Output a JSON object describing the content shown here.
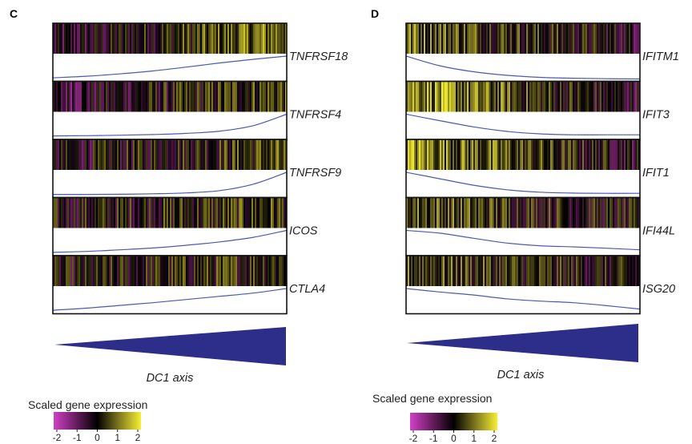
{
  "chart_data": [
    {
      "type": "heatmap",
      "panel": "C",
      "xlabel": "DC1 axis",
      "legend_title": "Scaled gene expression",
      "colorbar_ticks": [
        -2,
        -1,
        0,
        1,
        2
      ],
      "colormap": [
        "#d040c8",
        "#6a1e60",
        "#000000",
        "#807820",
        "#f4f030"
      ],
      "genes": [
        {
          "name": "TNFRSF18",
          "heat_start": -0.6,
          "heat_end": 1.0,
          "trend": [
            0.05,
            0.12,
            0.22,
            0.35,
            0.52,
            0.7,
            0.86,
            1.0
          ]
        },
        {
          "name": "TNFRSF4",
          "heat_start": -0.6,
          "heat_end": 0.6,
          "trend": [
            0.05,
            0.06,
            0.08,
            0.11,
            0.16,
            0.26,
            0.5,
            1.0
          ]
        },
        {
          "name": "TNFRSF9",
          "heat_start": -0.3,
          "heat_end": 0.5,
          "trend": [
            0.03,
            0.03,
            0.04,
            0.06,
            0.1,
            0.2,
            0.48,
            1.0
          ]
        },
        {
          "name": "ICOS",
          "heat_start": -0.1,
          "heat_end": 0.4,
          "trend": [
            0.04,
            0.08,
            0.15,
            0.23,
            0.35,
            0.5,
            0.7,
            1.0
          ]
        },
        {
          "name": "CTLA4",
          "heat_start": -0.2,
          "heat_end": 0.4,
          "trend": [
            0.05,
            0.14,
            0.26,
            0.38,
            0.52,
            0.66,
            0.8,
            1.0
          ]
        }
      ]
    },
    {
      "type": "heatmap",
      "panel": "D",
      "xlabel": "DC1 axis",
      "legend_title": "Scaled gene expression",
      "colorbar_ticks": [
        -2,
        -1,
        0,
        1,
        2
      ],
      "colormap": [
        "#d040c8",
        "#6a1e60",
        "#000000",
        "#807820",
        "#f4f030"
      ],
      "genes": [
        {
          "name": "IFITM1",
          "heat_start": 0.9,
          "heat_end": -0.3,
          "trend": [
            1.0,
            0.58,
            0.32,
            0.16,
            0.07,
            0.03,
            0.01,
            0.0
          ]
        },
        {
          "name": "IFIT3",
          "heat_start": 1.3,
          "heat_end": -0.4,
          "trend": [
            1.0,
            0.72,
            0.45,
            0.25,
            0.14,
            0.1,
            0.1,
            0.1
          ]
        },
        {
          "name": "IFIT1",
          "heat_start": 1.2,
          "heat_end": -0.3,
          "trend": [
            1.0,
            0.72,
            0.44,
            0.24,
            0.13,
            0.09,
            0.08,
            0.08
          ]
        },
        {
          "name": "IFI44L",
          "heat_start": 0.7,
          "heat_end": -0.2,
          "trend": [
            1.0,
            0.88,
            0.66,
            0.45,
            0.33,
            0.28,
            0.22,
            0.15
          ]
        },
        {
          "name": "ISG20",
          "heat_start": 0.6,
          "heat_end": -0.2,
          "trend": [
            1.0,
            0.85,
            0.72,
            0.55,
            0.45,
            0.38,
            0.25,
            0.1
          ]
        }
      ]
    }
  ]
}
